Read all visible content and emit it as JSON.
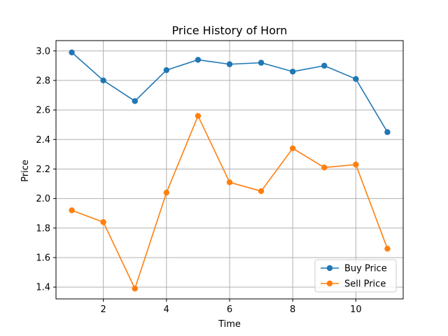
{
  "chart_data": {
    "type": "line",
    "title": "Price History of Horn",
    "xlabel": "Time",
    "ylabel": "Price",
    "x": [
      1,
      2,
      3,
      4,
      5,
      6,
      7,
      8,
      9,
      10,
      11
    ],
    "xlim": [
      0.5,
      11.5
    ],
    "ylim": [
      1.32,
      3.07
    ],
    "xticks": [
      2,
      4,
      6,
      8,
      10
    ],
    "yticks": [
      1.4,
      1.6,
      1.8,
      2.0,
      2.2,
      2.4,
      2.6,
      2.8,
      3.0
    ],
    "xtick_labels": [
      "2",
      "4",
      "6",
      "8",
      "10"
    ],
    "ytick_labels": [
      "1.4",
      "1.6",
      "1.8",
      "2.0",
      "2.2",
      "2.4",
      "2.6",
      "2.8",
      "3.0"
    ],
    "grid": true,
    "legend_position": "bottom-right",
    "series": [
      {
        "name": "Buy Price",
        "color": "#1f77b4",
        "values": [
          2.99,
          2.8,
          2.66,
          2.87,
          2.94,
          2.91,
          2.92,
          2.86,
          2.9,
          2.81,
          2.45
        ]
      },
      {
        "name": "Sell Price",
        "color": "#ff7f0e",
        "values": [
          1.92,
          1.84,
          1.39,
          2.04,
          2.56,
          2.11,
          2.05,
          2.34,
          2.21,
          2.23,
          1.66
        ]
      }
    ]
  }
}
